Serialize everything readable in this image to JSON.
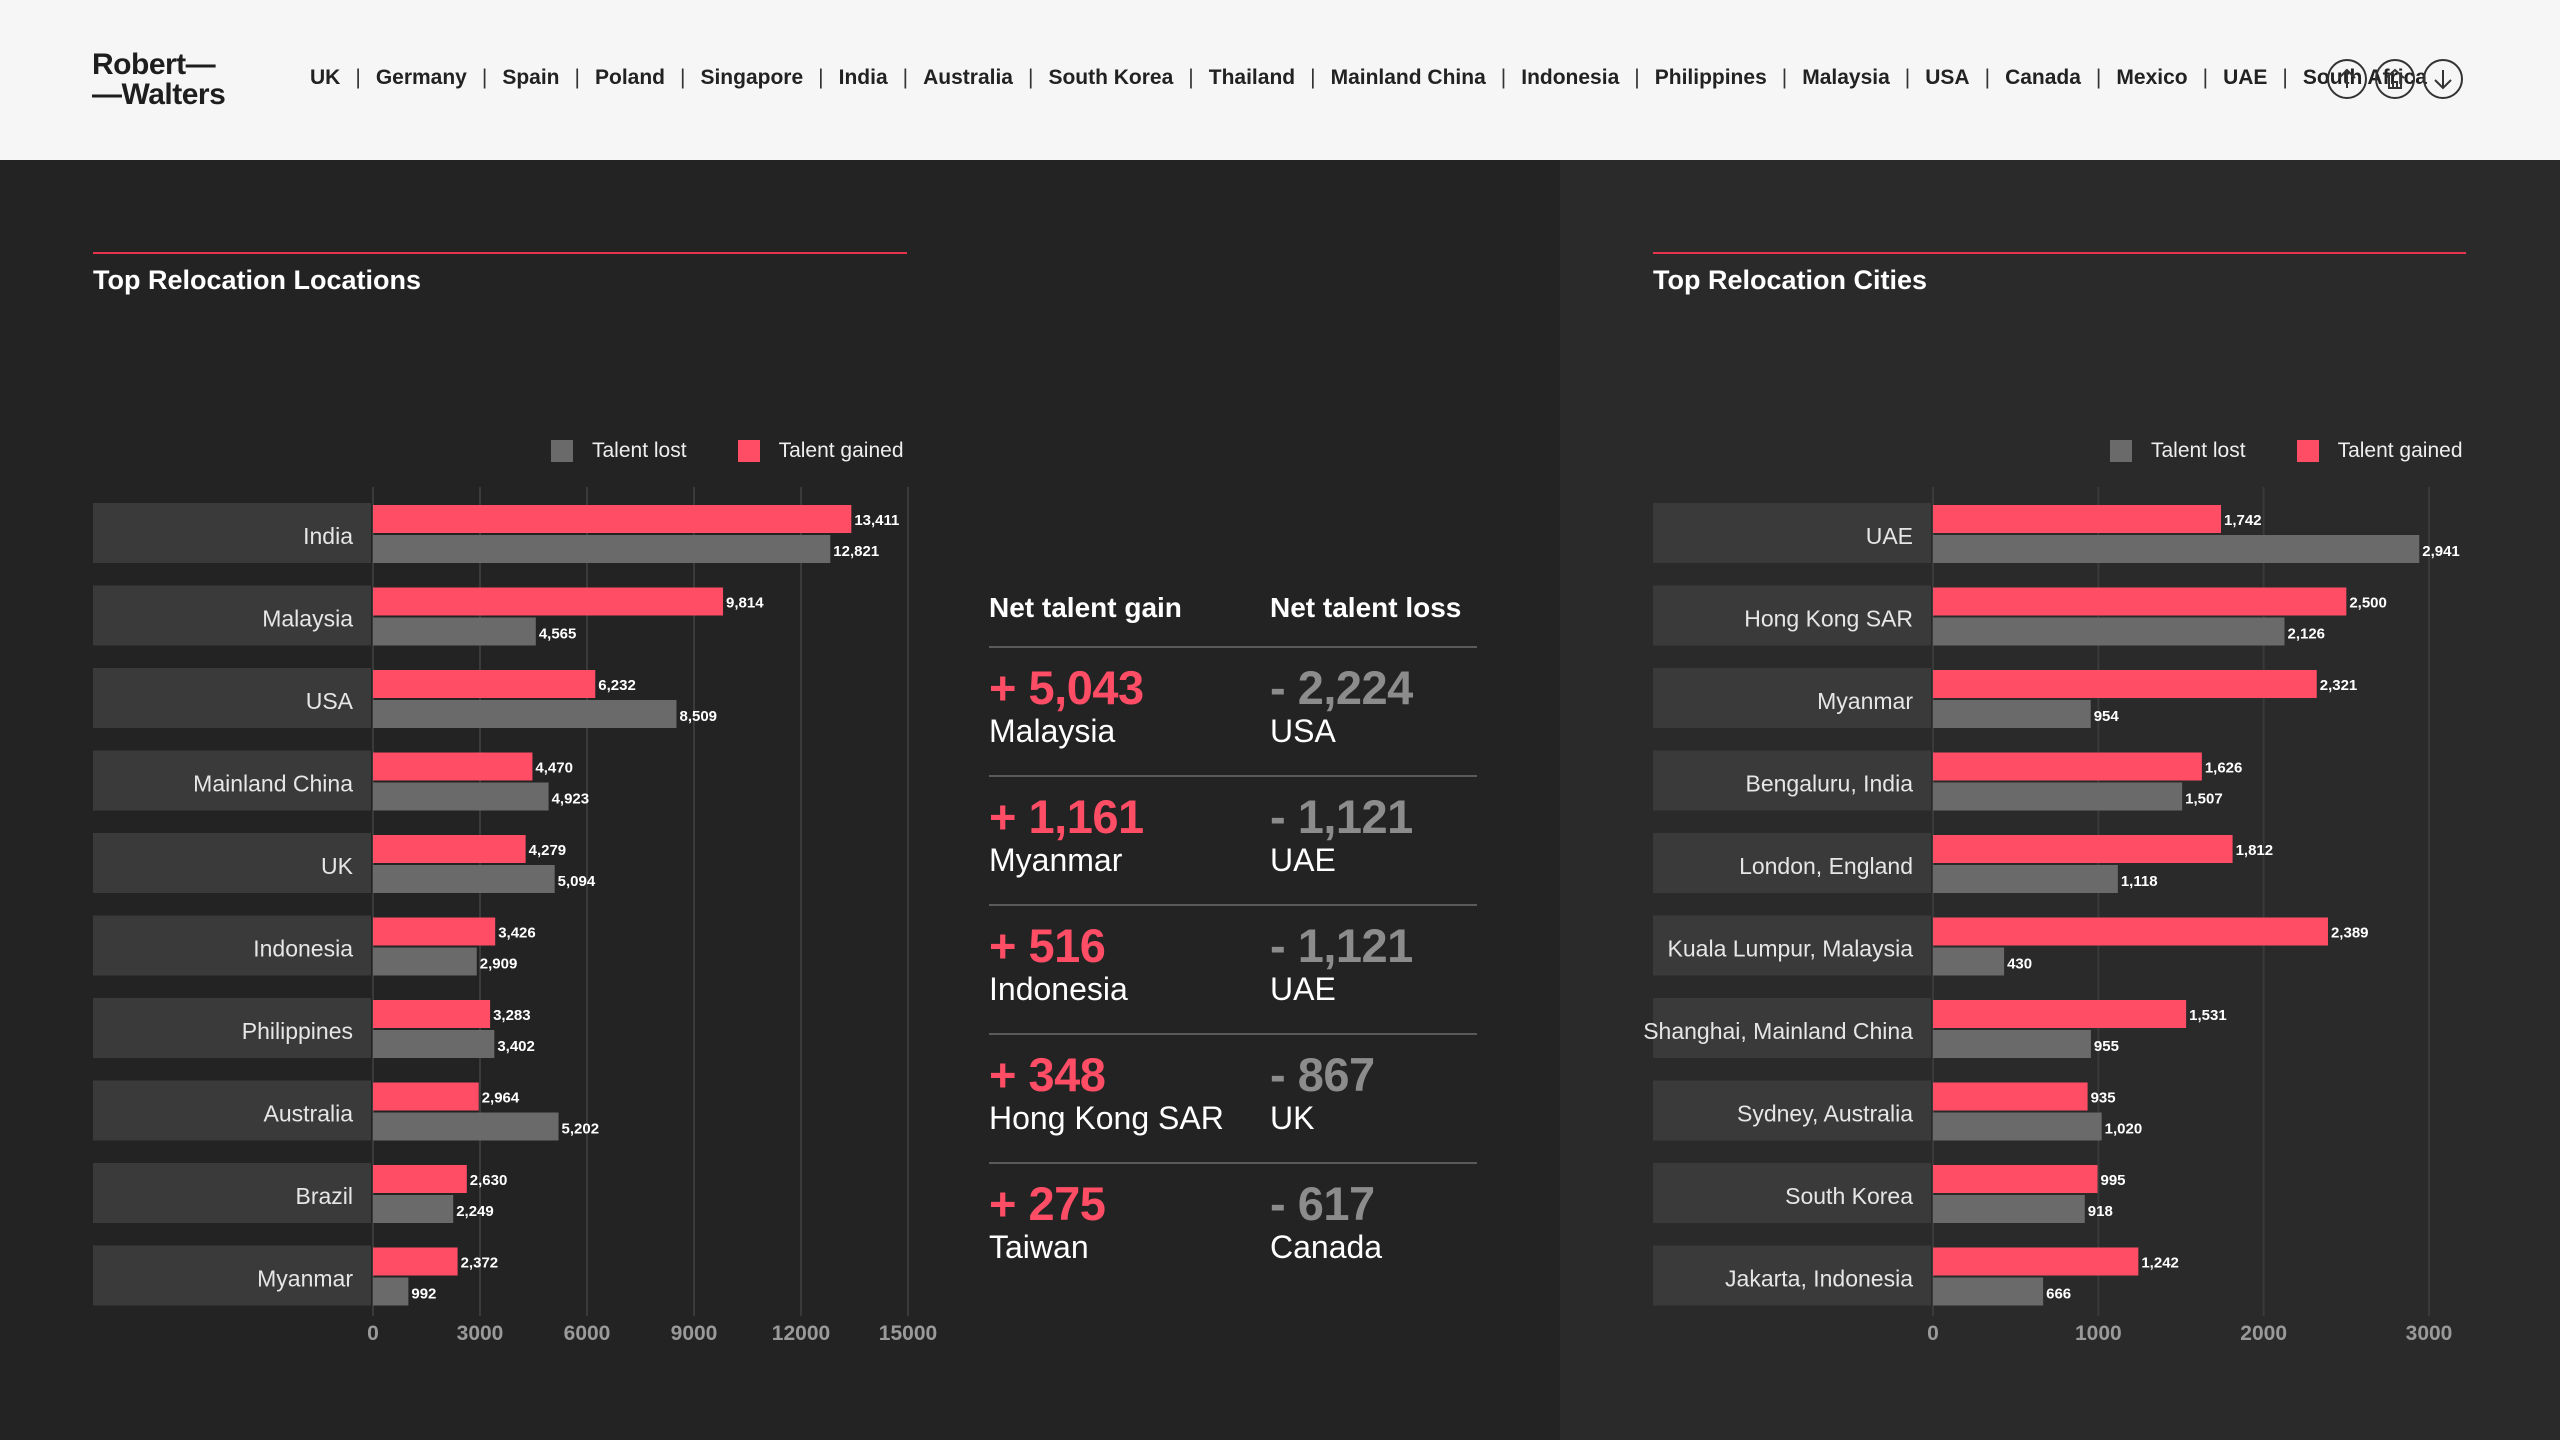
{
  "header": {
    "logo_line1": "Robert—",
    "logo_line2": "—Walters",
    "nav": [
      "UK",
      "Germany",
      "Spain",
      "Poland",
      "Singapore",
      "India",
      "Australia",
      "South Korea",
      "Thailand",
      "Mainland China",
      "Indonesia",
      "Philippines",
      "Malaysia",
      "USA",
      "Canada",
      "Mexico",
      "UAE",
      "South Africa"
    ],
    "buttons": [
      "up-arrow-icon",
      "home-icon",
      "down-arrow-icon"
    ]
  },
  "colors": {
    "gained": "#ff4d66",
    "lost": "#6a6a6a",
    "accent": "#e5344f"
  },
  "stats": {
    "gain_header": "Net talent gain",
    "loss_header": "Net talent loss",
    "rows": [
      {
        "gain_value": "+ 5,043",
        "gain_label": "Malaysia",
        "loss_value": "- 2,224",
        "loss_label": "USA"
      },
      {
        "gain_value": "+ 1,161",
        "gain_label": "Myanmar",
        "loss_value": "- 1,121",
        "loss_label": "UAE"
      },
      {
        "gain_value": "+ 516",
        "gain_label": "Indonesia",
        "loss_value": "- 1,121",
        "loss_label": "UAE"
      },
      {
        "gain_value": "+ 348",
        "gain_label": "Hong Kong SAR",
        "loss_value": "- 867",
        "loss_label": "UK"
      },
      {
        "gain_value": "+ 275",
        "gain_label": "Taiwan",
        "loss_value": "- 617",
        "loss_label": "Canada"
      }
    ]
  },
  "chart_data": [
    {
      "type": "bar",
      "orientation": "horizontal",
      "title": "Top Relocation Locations",
      "legend": [
        "Talent lost",
        "Talent gained"
      ],
      "categories": [
        "India",
        "Malaysia",
        "USA",
        "Mainland China",
        "UK",
        "Indonesia",
        "Philippines",
        "Australia",
        "Brazil",
        "Myanmar"
      ],
      "series": [
        {
          "name": "Talent gained",
          "values": [
            13411,
            9814,
            6232,
            4470,
            4279,
            3426,
            3283,
            2964,
            2630,
            2372
          ]
        },
        {
          "name": "Talent lost",
          "values": [
            12821,
            4565,
            8509,
            4923,
            5094,
            2909,
            3402,
            5202,
            2249,
            992
          ]
        }
      ],
      "xlim": [
        0,
        15000
      ],
      "xticks": [
        0,
        3000,
        6000,
        9000,
        12000,
        15000
      ],
      "xtick_labels": [
        "0",
        "3000",
        "6000",
        "9000",
        "12000",
        "15000"
      ]
    },
    {
      "type": "bar",
      "orientation": "horizontal",
      "title": "Top Relocation Cities",
      "legend": [
        "Talent lost",
        "Talent gained"
      ],
      "categories": [
        "UAE",
        "Hong Kong SAR",
        "Myanmar",
        "Bengaluru, India",
        "London, England",
        "Kuala Lumpur, Malaysia",
        "Shanghai, Mainland China",
        "Sydney, Australia",
        "South Korea",
        "Jakarta, Indonesia"
      ],
      "series": [
        {
          "name": "Talent gained",
          "values": [
            1742,
            2500,
            2321,
            1626,
            1812,
            2389,
            1531,
            935,
            995,
            1242
          ]
        },
        {
          "name": "Talent lost",
          "values": [
            2941,
            2126,
            954,
            1507,
            1118,
            430,
            955,
            1020,
            918,
            666
          ]
        }
      ],
      "xlim": [
        0,
        3000
      ],
      "xticks": [
        0,
        1000,
        2000,
        3000
      ],
      "xtick_labels": [
        "0",
        "1000",
        "2000",
        "3000"
      ]
    }
  ]
}
